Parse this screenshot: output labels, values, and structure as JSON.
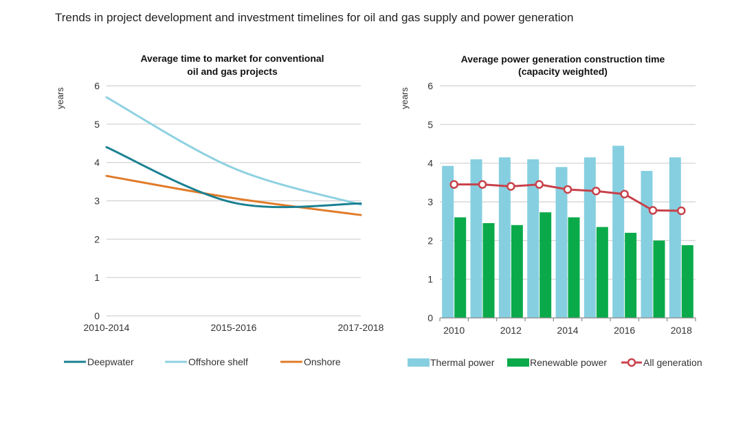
{
  "page": {
    "title": "Trends in project development and investment timelines for oil and gas supply and power generation"
  },
  "colors": {
    "deepwater": "#1a8091",
    "offshore": "#8dd1e1",
    "onshore": "#e07b28",
    "thermal": "#86cfe0",
    "renewable": "#0aaa4a",
    "all_generation": "#c8414a"
  },
  "chart_data": [
    {
      "type": "line",
      "title_lines": [
        "Average time to market for conventional",
        "oil and gas projects"
      ],
      "ylabel": "years",
      "ylim": [
        0,
        6
      ],
      "yticks": [
        "0",
        "1",
        "2",
        "3",
        "4",
        "5",
        "6"
      ],
      "categories": [
        "2010-2014",
        "2015-2016",
        "2017-2018"
      ],
      "series": [
        {
          "name": "Deepwater",
          "values": [
            4.4,
            2.95,
            2.93
          ]
        },
        {
          "name": "Offshore shelf",
          "values": [
            5.7,
            3.85,
            2.9
          ]
        },
        {
          "name": "Onshore",
          "values": [
            3.65,
            3.07,
            2.63
          ]
        }
      ]
    },
    {
      "type": "bar",
      "title_lines": [
        "Average power generation construction time",
        "(capacity weighted)"
      ],
      "ylabel": "years",
      "ylim": [
        0,
        6
      ],
      "yticks": [
        "0",
        "1",
        "2",
        "3",
        "4",
        "5",
        "6"
      ],
      "x": [
        "2010",
        "2011",
        "2012",
        "2013",
        "2014",
        "2015",
        "2016",
        "2017",
        "2018"
      ],
      "xtick_labels": [
        "2010",
        "2012",
        "2014",
        "2016",
        "2018"
      ],
      "series": [
        {
          "name": "Thermal power",
          "type": "bar",
          "values": [
            3.93,
            4.1,
            4.15,
            4.1,
            3.9,
            4.15,
            4.45,
            3.8,
            4.15
          ]
        },
        {
          "name": "Renewable power",
          "type": "bar",
          "values": [
            2.6,
            2.45,
            2.4,
            2.73,
            2.6,
            2.35,
            2.2,
            2.0,
            1.88
          ]
        },
        {
          "name": "All generation",
          "type": "line",
          "values": [
            3.45,
            3.45,
            3.4,
            3.45,
            3.32,
            3.28,
            3.2,
            2.78,
            2.77
          ]
        }
      ]
    }
  ]
}
